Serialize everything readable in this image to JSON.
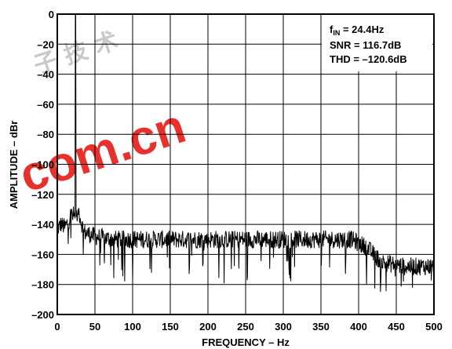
{
  "chart_data": {
    "type": "line",
    "title": "",
    "xlabel": "FREQUENCY – Hz",
    "ylabel": "AMPLITUDE – dBr",
    "xlim": [
      0,
      500
    ],
    "ylim": [
      -200,
      0
    ],
    "x_ticks": [
      "0",
      "50",
      "100",
      "150",
      "200",
      "250",
      "300",
      "350",
      "400",
      "450",
      "500"
    ],
    "y_ticks": [
      "0",
      "–20",
      "–40",
      "–60",
      "–80",
      "–100",
      "–120",
      "–140",
      "–160",
      "–180",
      "–200"
    ],
    "grid": true,
    "annotations": {
      "fin_prefix": "f",
      "fin_sub": "IN",
      "fin_value": " = 24.4Hz",
      "snr": "SNR = 116.7dB",
      "thd": "THD = –120.6dB"
    },
    "watermark": {
      "text": "com.cn",
      "cjk": "子 技 术"
    },
    "series": [
      {
        "color": "#000000",
        "fundamental": {
          "x": 24.4,
          "y": 0
        },
        "noise_floor": [
          [
            0,
            -143
          ],
          [
            5,
            -140
          ],
          [
            10,
            -142
          ],
          [
            15,
            -138
          ],
          [
            20,
            -130
          ],
          [
            24.4,
            0
          ],
          [
            28,
            -130
          ],
          [
            35,
            -145
          ],
          [
            50,
            -148
          ],
          [
            75,
            -150
          ],
          [
            100,
            -150
          ],
          [
            150,
            -150
          ],
          [
            200,
            -150
          ],
          [
            250,
            -150
          ],
          [
            300,
            -150
          ],
          [
            350,
            -150
          ],
          [
            390,
            -150
          ],
          [
            410,
            -155
          ],
          [
            430,
            -165
          ],
          [
            460,
            -168
          ],
          [
            500,
            -168
          ]
        ]
      }
    ]
  }
}
